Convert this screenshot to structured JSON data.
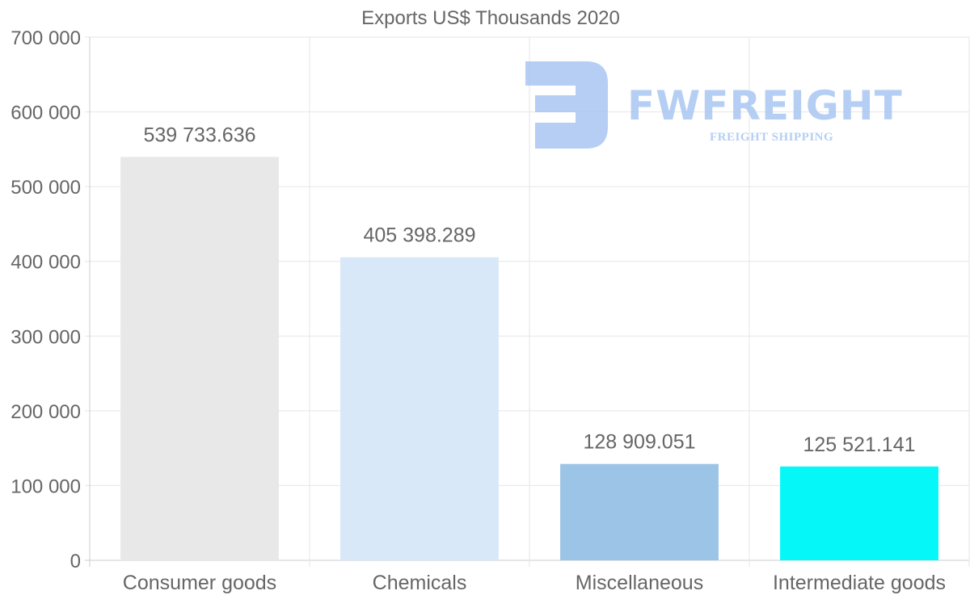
{
  "chart_data": {
    "type": "bar",
    "title": "Exports US$ Thousands 2020",
    "categories": [
      "Consumer goods",
      "Chemicals",
      "Miscellaneous",
      "Intermediate goods"
    ],
    "values": [
      539733.636,
      405398.289,
      128909.051,
      125521.141
    ],
    "value_labels": [
      "539 733.636",
      "405 398.289",
      "128 909.051",
      "125 521.141"
    ],
    "bar_colors": [
      "#e8e8e8",
      "#d8e8f8",
      "#9cc4e6",
      "#05f7f7"
    ],
    "ylim": [
      0,
      700000
    ],
    "yticks": [
      0,
      100000,
      200000,
      300000,
      400000,
      500000,
      600000,
      700000
    ],
    "ytick_labels": [
      "0",
      "100 000",
      "200 000",
      "300 000",
      "400 000",
      "500 000",
      "600 000",
      "700 000"
    ],
    "xlabel": "",
    "ylabel": "",
    "grid": true,
    "legend": "none"
  },
  "watermark": {
    "brand": "FWFREIGHT",
    "tagline": "FREIGHT SHIPPING",
    "color": "#a9c6f2"
  },
  "colors": {
    "text": "#666666",
    "grid": "#e6e6e6",
    "axis": "#cccccc"
  }
}
